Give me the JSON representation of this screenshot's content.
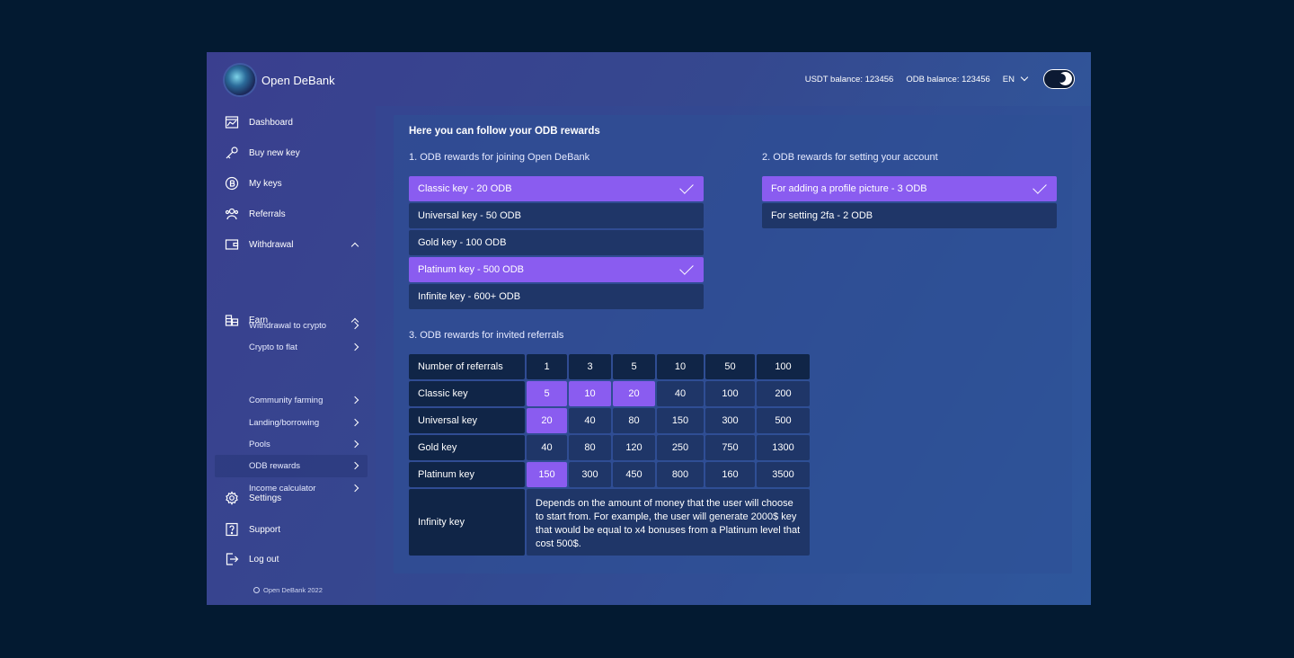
{
  "brand": {
    "name": "Open DeBank"
  },
  "topbar": {
    "usdt_balance": "USDT balance: 123456",
    "odb_balance": "ODB balance: 123456",
    "language": "EN"
  },
  "sidebar": {
    "items": [
      {
        "label": "Dashboard",
        "icon": "dashboard-icon"
      },
      {
        "label": "Buy new key",
        "icon": "key-icon"
      },
      {
        "label": "My keys",
        "icon": "coin-icon"
      },
      {
        "label": "Referrals",
        "icon": "users-icon"
      },
      {
        "label": "Withdrawal",
        "icon": "wallet-icon"
      },
      {
        "label": "Earn",
        "icon": "coins-stack-icon"
      },
      {
        "label": "Settings",
        "icon": "gear-icon"
      },
      {
        "label": "Support",
        "icon": "help-icon"
      },
      {
        "label": "Log out",
        "icon": "logout-icon"
      }
    ],
    "withdrawal_sub": [
      "Withdrawal to crypto",
      "Crypto to flat"
    ],
    "earn_sub": [
      "Community farming",
      "Landing/borrowing",
      "Pools",
      "ODB rewards",
      "Income calculator"
    ],
    "active": "ODB rewards",
    "footer": "Open DeBank 2022"
  },
  "main": {
    "title": "Here you can follow your ODB rewards",
    "section1": {
      "title": "1. ODB rewards for joining Open DeBank",
      "options": [
        {
          "label": "Classic key - 20 ODB",
          "checked": true
        },
        {
          "label": "Universal key - 50 ODB",
          "checked": false
        },
        {
          "label": "Gold key - 100 ODB",
          "checked": false
        },
        {
          "label": "Platinum key - 500 ODB",
          "checked": true
        },
        {
          "label": "Infinite key - 600+ ODB",
          "checked": false
        }
      ]
    },
    "section2": {
      "title": "2. ODB rewards for setting your account",
      "options": [
        {
          "label": "For adding a profile picture - 3 ODB",
          "checked": true
        },
        {
          "label": "For setting 2fa - 2 ODB",
          "checked": false
        }
      ]
    },
    "section3": {
      "title": "3. ODB rewards for invited referrals",
      "header_label": "Number of referrals",
      "columns": [
        "1",
        "3",
        "5",
        "10",
        "50",
        "100"
      ],
      "rows": [
        {
          "label": "Classic key",
          "values": [
            "5",
            "10",
            "20",
            "40",
            "100",
            "200"
          ],
          "highlight": [
            0,
            1,
            2
          ]
        },
        {
          "label": "Universal key",
          "values": [
            "20",
            "40",
            "80",
            "150",
            "300",
            "500"
          ],
          "highlight": [
            0
          ]
        },
        {
          "label": "Gold key",
          "values": [
            "40",
            "80",
            "120",
            "250",
            "750",
            "1300"
          ],
          "highlight": []
        },
        {
          "label": "Platinum key",
          "values": [
            "150",
            "300",
            "450",
            "800",
            "160",
            "3500"
          ],
          "highlight": [
            0
          ]
        }
      ],
      "infinity": {
        "label": "Infinity key",
        "description": "Depends on the amount of money that the user will choose to start from. For example, the user will generate 2000$ key that would be equal to x4 bonuses from a Platinum level that cost 500$."
      }
    }
  },
  "colors": {
    "accent": "#8a5cf0",
    "cell": "#1f3668",
    "header_cell": "#102547",
    "page_bg": "#031a31"
  }
}
